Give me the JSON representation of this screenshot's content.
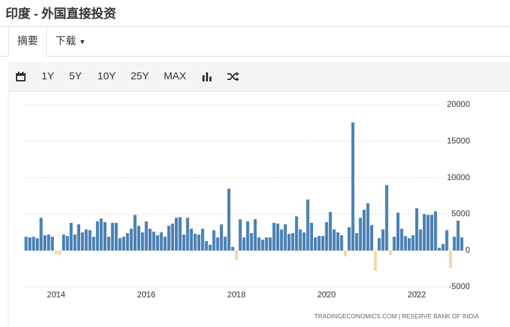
{
  "header": {
    "title": "印度 - 外国直接投资"
  },
  "tabs": [
    "摘要",
    "下载"
  ],
  "toolbar": [
    "1Y",
    "5Y",
    "10Y",
    "25Y",
    "MAX"
  ],
  "chart_data": {
    "type": "bar",
    "categories": [
      null,
      null,
      null,
      null,
      null,
      null,
      null,
      null,
      "2014",
      null,
      null,
      null,
      null,
      null,
      null,
      null,
      null,
      null,
      null,
      null,
      null,
      null,
      null,
      null,
      null,
      null,
      null,
      null,
      null,
      null,
      null,
      null,
      "2016",
      null,
      null,
      null,
      null,
      null,
      null,
      null,
      null,
      null,
      null,
      null,
      null,
      null,
      null,
      null,
      null,
      null,
      null,
      null,
      null,
      null,
      null,
      null,
      "2018",
      null,
      null,
      null,
      null,
      null,
      null,
      null,
      null,
      null,
      null,
      null,
      null,
      null,
      null,
      null,
      null,
      null,
      null,
      null,
      null,
      null,
      null,
      null,
      "2020",
      null,
      null,
      null,
      null,
      null,
      null,
      null,
      null,
      null,
      null,
      null,
      null,
      null,
      null,
      null,
      null,
      null,
      null,
      null,
      null,
      null,
      null,
      null,
      "2022",
      null,
      null,
      null,
      null,
      null,
      null,
      null,
      null,
      null,
      null,
      null,
      null
    ],
    "values": [
      1900,
      1800,
      1900,
      1700,
      4500,
      2100,
      2200,
      1900,
      -500,
      -600,
      2200,
      2000,
      3800,
      2200,
      3600,
      2500,
      2900,
      2800,
      1900,
      4000,
      4400,
      3900,
      1900,
      3800,
      3800,
      1700,
      1900,
      2400,
      3000,
      4900,
      3400,
      2500,
      4000,
      3000,
      2600,
      2100,
      2500,
      1900,
      3400,
      3700,
      4500,
      4600,
      2200,
      4500,
      3000,
      2300,
      2200,
      3000,
      1300,
      800,
      2800,
      1800,
      3600,
      1900,
      8500,
      500,
      -1300,
      4300,
      1800,
      4000,
      2400,
      4300,
      1800,
      1500,
      1800,
      1800,
      3800,
      3700,
      2900,
      3600,
      2300,
      2400,
      4700,
      2900,
      2500,
      7000,
      3800,
      1800,
      2000,
      2000,
      3900,
      5300,
      2900,
      2500,
      2100,
      -800,
      3200,
      17600,
      2400,
      4500,
      5600,
      6500,
      3500,
      -2800,
      1700,
      2900,
      9000,
      -600,
      1900,
      5200,
      3000,
      2000,
      1700,
      2100,
      5800,
      2900,
      5000,
      4900,
      4900,
      5400,
      400,
      900,
      2800,
      -2400,
      1900,
      4100,
      1800
    ],
    "color": "#4a80b3",
    "negative_color": "#f3d7a6",
    "ylim": [
      -5000,
      20000
    ],
    "yticks": [
      20000,
      15000,
      10000,
      5000,
      0,
      -5000
    ],
    "grid": true,
    "source": "TRADINGECONOMICS.COM  |  RESERVE BANK OF INDIA"
  }
}
